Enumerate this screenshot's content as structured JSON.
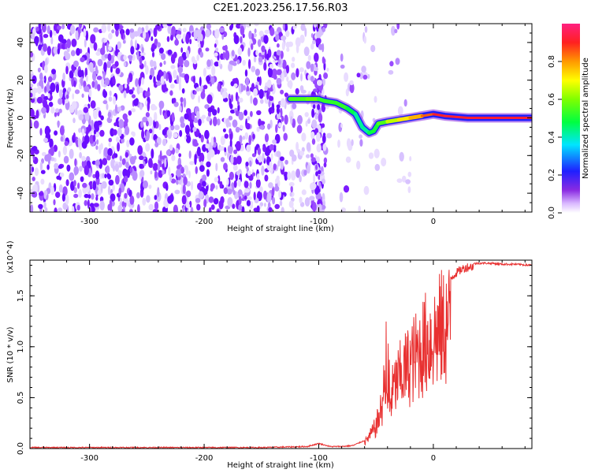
{
  "title": "C2E1.2023.256.17.56.R03",
  "chart_data": [
    {
      "type": "heatmap",
      "name": "spectrogram",
      "xlabel": "Height of straight line (km)",
      "ylabel": "Frequency (Hz)",
      "xlim": [
        -352,
        86
      ],
      "ylim": [
        -50,
        50
      ],
      "xticks": [
        -300,
        -200,
        -100,
        0
      ],
      "yticks": [
        -40,
        -20,
        0,
        20,
        40
      ],
      "colorbar": {
        "label": "Normalized spectral amplitude",
        "range": [
          0.0,
          1.0
        ],
        "ticks": [
          "0.0",
          "0.2",
          "0.4",
          "0.6",
          "0.8"
        ]
      },
      "signal_track": {
        "height_km": [
          -125,
          -110,
          -100,
          -95,
          -85,
          -75,
          -68,
          -62,
          -56,
          -52,
          -48,
          -40,
          -30,
          -20,
          -10,
          0,
          10,
          30,
          86
        ],
        "frequency_hz": [
          10,
          10,
          10,
          9,
          8,
          5,
          2,
          -5,
          -8,
          -7,
          -3,
          -2,
          -1,
          0,
          1,
          2,
          1,
          0,
          0
        ],
        "amplitude": [
          0.5,
          0.6,
          0.55,
          0.5,
          0.55,
          0.5,
          0.45,
          0.4,
          0.45,
          0.5,
          0.5,
          0.6,
          0.7,
          0.75,
          0.8,
          0.9,
          0.92,
          0.92,
          0.92
        ]
      }
    },
    {
      "type": "line",
      "name": "snr",
      "xlabel": "Height of straight line (km)",
      "ylabel": "SNR (10 * v/v)",
      "y_multiplier": "(x10^4)",
      "xlim": [
        -352,
        86
      ],
      "ylim": [
        0.0,
        1.85
      ],
      "xticks": [
        -300,
        -200,
        -100,
        0
      ],
      "yticks": [
        "0.0",
        "0.5",
        "1.0",
        "1.5"
      ],
      "color": "#e83030",
      "series": [
        {
          "name": "SNR",
          "x": [
            -352,
            -300,
            -250,
            -200,
            -150,
            -110,
            -100,
            -90,
            -80,
            -70,
            -60,
            -55,
            -50,
            -45,
            -42,
            -40,
            -38,
            -35,
            -30,
            -25,
            -20,
            -15,
            -10,
            -5,
            0,
            5,
            10,
            15,
            20,
            25,
            30,
            40,
            50,
            60,
            70,
            86
          ],
          "y": [
            0.01,
            0.01,
            0.01,
            0.01,
            0.01,
            0.02,
            0.05,
            0.02,
            0.02,
            0.03,
            0.08,
            0.18,
            0.3,
            0.55,
            0.9,
            0.7,
            0.6,
            0.8,
            0.95,
            1.05,
            1.15,
            1.25,
            1.35,
            1.45,
            1.5,
            1.58,
            1.65,
            1.7,
            1.75,
            1.79,
            1.81,
            1.82,
            1.82,
            1.81,
            1.81,
            1.8
          ]
        }
      ]
    }
  ]
}
